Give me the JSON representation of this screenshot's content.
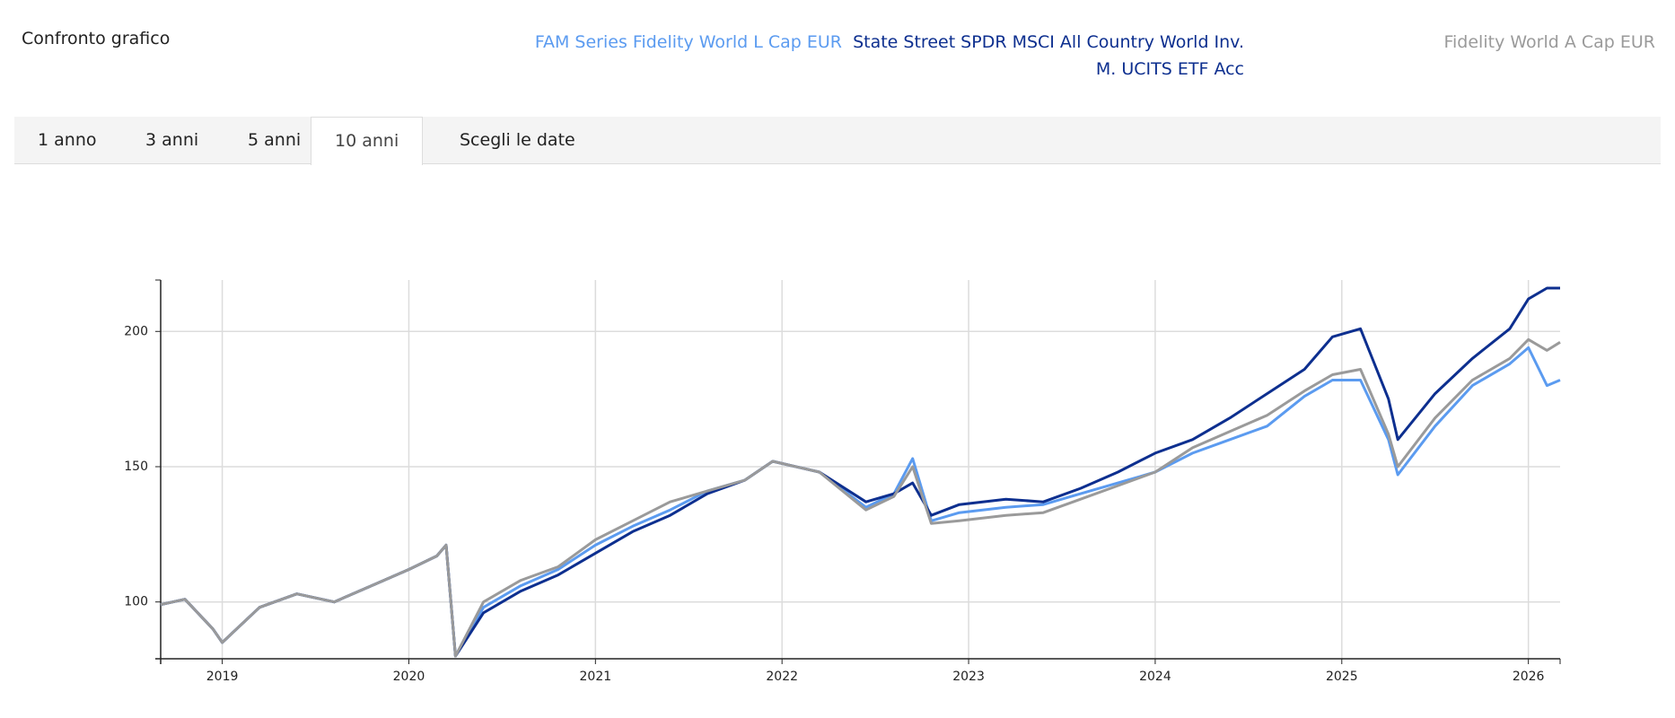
{
  "header": {
    "title": "Confronto grafico"
  },
  "tabs": [
    "1 anno",
    "3 anni",
    "5 anni",
    "10 anni",
    "Scegli le date"
  ],
  "chart_data": {
    "type": "line",
    "x": [
      2018.67,
      2018.8,
      2018.95,
      2019.0,
      2019.2,
      2019.4,
      2019.6,
      2019.8,
      2020.0,
      2020.15,
      2020.2,
      2020.25,
      2020.4,
      2020.6,
      2020.8,
      2021.0,
      2021.2,
      2021.4,
      2021.6,
      2021.8,
      2021.95,
      2022.2,
      2022.45,
      2022.6,
      2022.7,
      2022.8,
      2022.95,
      2023.2,
      2023.4,
      2023.6,
      2023.8,
      2024.0,
      2024.2,
      2024.4,
      2024.6,
      2024.8,
      2024.95,
      2025.1,
      2025.25,
      2025.3,
      2025.5,
      2025.7,
      2025.9,
      2026.0,
      2026.1,
      2026.17
    ],
    "series": [
      {
        "name": "FAM Series Fidelity World L Cap EUR",
        "color": "#5b9bf0",
        "values": [
          99,
          101,
          90,
          85,
          98,
          103,
          100,
          106,
          112,
          117,
          121,
          80,
          98,
          106,
          112,
          121,
          128,
          134,
          141,
          145,
          152,
          148,
          135,
          140,
          153,
          130,
          133,
          135,
          136,
          140,
          144,
          148,
          155,
          160,
          165,
          176,
          182,
          182,
          160,
          147,
          165,
          180,
          188,
          194,
          180,
          182
        ]
      },
      {
        "name": "State Street SPDR MSCI All Country World Inv. M. UCITS ETF Acc",
        "color": "#0d2f8f",
        "values": [
          99,
          101,
          90,
          85,
          98,
          103,
          100,
          106,
          112,
          117,
          121,
          80,
          96,
          104,
          110,
          118,
          126,
          132,
          140,
          145,
          152,
          148,
          137,
          140,
          144,
          132,
          136,
          138,
          137,
          142,
          148,
          155,
          160,
          168,
          177,
          186,
          198,
          201,
          175,
          160,
          177,
          190,
          201,
          212,
          216,
          216
        ]
      },
      {
        "name": "Fidelity World A Cap EUR",
        "color": "#9a9a9a",
        "values": [
          99,
          101,
          90,
          85,
          98,
          103,
          100,
          106,
          112,
          117,
          121,
          80,
          100,
          108,
          113,
          123,
          130,
          137,
          141,
          145,
          152,
          148,
          134,
          139,
          150,
          129,
          130,
          132,
          133,
          138,
          143,
          148,
          157,
          163,
          169,
          178,
          184,
          186,
          162,
          150,
          168,
          182,
          190,
          197,
          193,
          196
        ]
      }
    ],
    "xlim": [
      2018.67,
      2026.17
    ],
    "xticks": [
      2019,
      2020,
      2021,
      2022,
      2023,
      2024,
      2025,
      2026
    ],
    "ylim": [
      79,
      219
    ],
    "yticks": [
      100,
      150,
      200
    ],
    "grid": true
  }
}
